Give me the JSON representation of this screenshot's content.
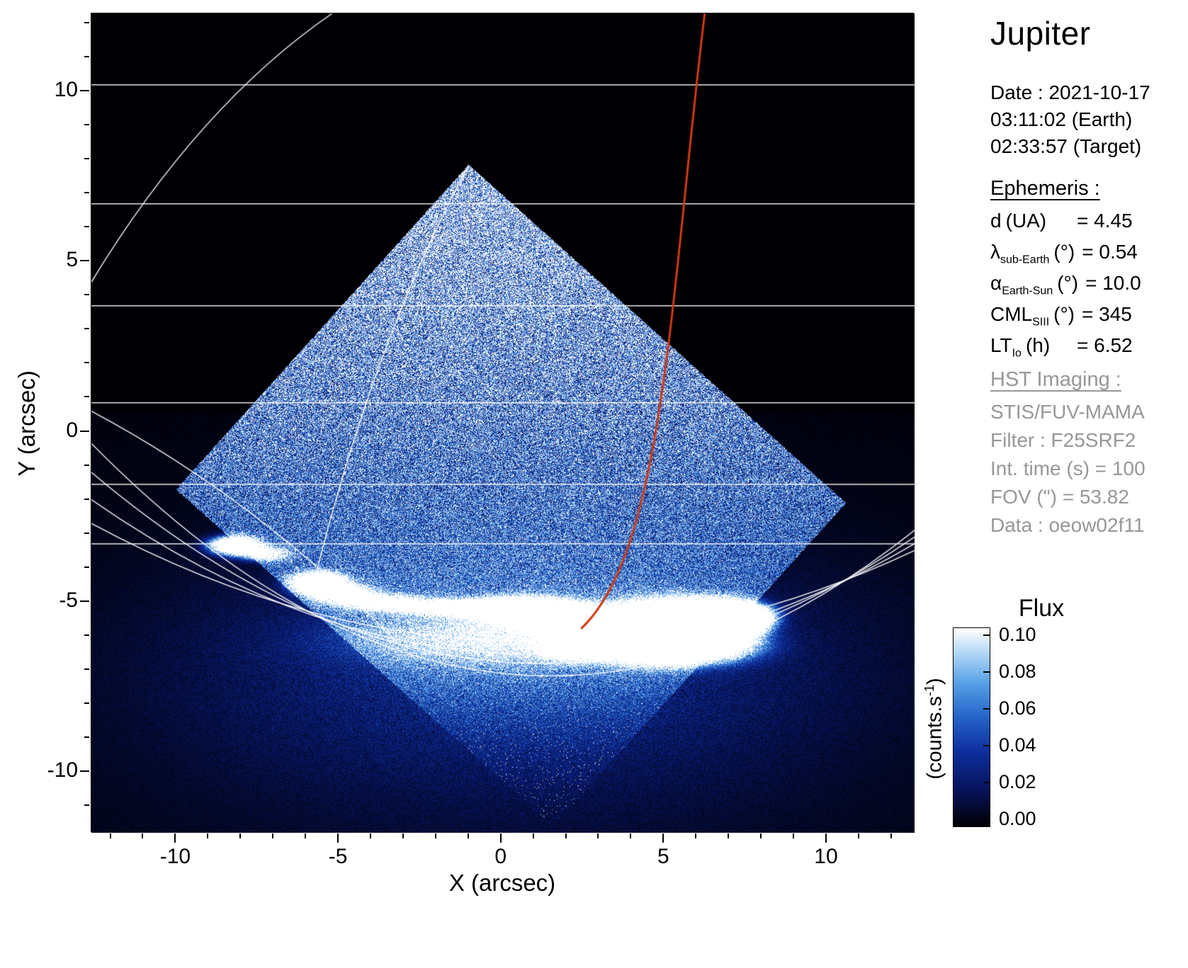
{
  "info_panel": {
    "title": "Jupiter",
    "date_line": "Date : 2021-10-17",
    "earth_time": "03:11:02 (Earth)",
    "target_time": "02:33:57 (Target)",
    "ephemeris": {
      "heading": "Ephemeris :",
      "rows": [
        {
          "symbol": "d",
          "sub": "",
          "unit": "(UA)",
          "value": "= 4.45"
        },
        {
          "symbol": "λ",
          "sub": "sub-Earth",
          "unit": "(°)",
          "value": "= 0.54"
        },
        {
          "symbol": "α",
          "sub": "Earth-Sun",
          "unit": "(°)",
          "value": "= 10.0"
        },
        {
          "symbol": "CML",
          "sub": "SIII",
          "unit": "(°)",
          "value": "= 345"
        },
        {
          "symbol": "LT",
          "sub": "Io",
          "unit": "(h)",
          "value": "= 6.52"
        }
      ]
    },
    "hst": {
      "heading": "HST Imaging :",
      "lines": [
        "STIS/FUV-MAMA",
        "Filter : F25SRF2",
        "Int. time (s) = 100",
        "FOV (\") = 53.82",
        "Data : oeow02f11"
      ]
    }
  },
  "axes": {
    "xlabel": "X (arcsec)",
    "ylabel": "Y (arcsec)",
    "x_ticks": [
      -10,
      -5,
      0,
      5,
      10
    ],
    "y_ticks": [
      10,
      5,
      0,
      -5,
      -10
    ]
  },
  "colorbar": {
    "title": "Flux",
    "unit_prefix": "(counts.s",
    "unit_sup": "-1",
    "unit_suffix": ")",
    "tick_labels": [
      "0.10",
      "0.08",
      "0.06",
      "0.04",
      "0.02",
      "0.00"
    ]
  },
  "chart_data": {
    "type": "heatmap",
    "title": "Jupiter",
    "subtitle": "HST STIS/FUV-MAMA image of Jupiter auroral region, 2021-10-17 03:11:02 (Earth)",
    "xlabel": "X (arcsec)",
    "ylabel": "Y (arcsec)",
    "xlim": [
      -12.6,
      12.7
    ],
    "ylim": [
      -11.8,
      12.3
    ],
    "xticks": [
      -10,
      -5,
      0,
      5,
      10
    ],
    "yticks": [
      -10,
      -5,
      0,
      5,
      10
    ],
    "grid": false,
    "background": "#000000",
    "colorbar": {
      "label": "Flux (counts.s-1)",
      "min": 0.0,
      "max": 0.1,
      "ticks": [
        0.1,
        0.08,
        0.06,
        0.04,
        0.02,
        0.0
      ]
    },
    "colormap_stops": [
      {
        "t": 0.0,
        "color": "#000004"
      },
      {
        "t": 0.18,
        "color": "#07135a"
      },
      {
        "t": 0.38,
        "color": "#0e2f9e"
      },
      {
        "t": 0.55,
        "color": "#2563c8"
      },
      {
        "t": 0.72,
        "color": "#55a0e6"
      },
      {
        "t": 0.86,
        "color": "#a9d3f5"
      },
      {
        "t": 1.0,
        "color": "#ffffff"
      }
    ],
    "detector_quad": [
      [
        -1.0,
        7.85
      ],
      [
        10.6,
        -2.1
      ],
      [
        1.6,
        -11.6
      ],
      [
        -10.0,
        -1.7
      ]
    ],
    "aurora_blobs": [
      [
        -8.2,
        -3.35,
        0.45,
        0.16,
        0.3
      ],
      [
        -7.3,
        -3.6,
        0.5,
        0.13,
        0.12
      ],
      [
        -5.6,
        -4.45,
        0.5,
        0.18,
        0.3
      ],
      [
        -4.9,
        -4.75,
        0.6,
        0.15,
        0.18
      ],
      [
        -3.8,
        -5.0,
        0.9,
        0.14,
        0.12
      ],
      [
        -2.2,
        -5.15,
        1.2,
        0.13,
        0.1
      ],
      [
        -0.6,
        -5.2,
        1.0,
        0.15,
        0.18
      ],
      [
        0.7,
        -5.3,
        0.8,
        0.22,
        0.4
      ],
      [
        1.8,
        -5.5,
        0.7,
        0.25,
        0.35
      ],
      [
        3.1,
        -5.9,
        0.8,
        0.3,
        0.45
      ],
      [
        4.8,
        -5.85,
        1.0,
        0.4,
        0.85
      ],
      [
        6.3,
        -5.65,
        0.8,
        0.34,
        0.8
      ],
      [
        7.4,
        -5.45,
        0.5,
        0.22,
        0.45
      ],
      [
        2.3,
        -6.3,
        0.6,
        0.22,
        0.28
      ],
      [
        5.6,
        -6.3,
        1.2,
        0.3,
        0.3
      ],
      [
        0.0,
        -6.1,
        3.0,
        0.5,
        0.06
      ]
    ],
    "grid_h_lines": [
      10.2,
      6.7,
      3.7,
      0.85,
      -1.55,
      -3.3
    ],
    "meridians": [
      {
        "p0": [
          -5.2,
          12.3
        ],
        "c": [
          -9.3,
          9.6
        ],
        "p1": [
          -12.6,
          4.4
        ]
      },
      {
        "p0": [
          -1.0,
          7.85
        ],
        "c": [
          -4.0,
          2.5
        ],
        "p1": [
          -5.8,
          -4.6
        ]
      },
      {
        "p0": [
          -12.6,
          0.6
        ],
        "c": [
          -7.5,
          -2.0
        ],
        "p1": [
          -3.2,
          -6.2
        ]
      }
    ],
    "limb_arcs": [
      {
        "p0": [
          -12.6,
          -0.35
        ],
        "c": [
          0,
          -12.6
        ],
        "p1": [
          12.7,
          -2.9
        ]
      },
      {
        "p0": [
          -12.6,
          -1.2
        ],
        "c": [
          0,
          -11.4
        ],
        "p1": [
          12.7,
          -3.1
        ]
      },
      {
        "p0": [
          -12.6,
          -2.0
        ],
        "c": [
          0,
          -10.4
        ],
        "p1": [
          12.7,
          -3.3
        ]
      },
      {
        "p0": [
          -12.6,
          -2.7
        ],
        "c": [
          0,
          -9.2
        ],
        "p1": [
          12.7,
          -3.5
        ]
      }
    ],
    "io_footprint_curve": {
      "color": "#cf3a12",
      "p0": [
        6.25,
        12.3
      ],
      "c1": [
        5.2,
        4.0
      ],
      "c2": [
        5.0,
        -3.5
      ],
      "p1": [
        2.45,
        -5.8
      ]
    }
  }
}
